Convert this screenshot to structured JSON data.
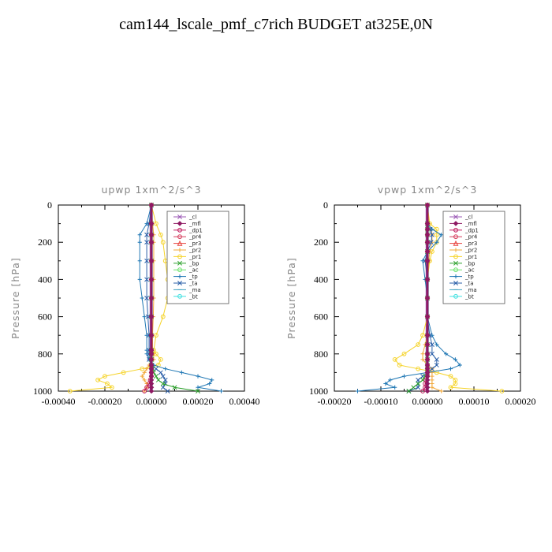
{
  "title": "cam144_lscale_pmf_c7rich  BUDGET at325E,0N",
  "legend_entries": [
    {
      "label": "_cl",
      "color": "#9b59b6",
      "marker": "x"
    },
    {
      "label": "_mfl",
      "color": "#8e1a63",
      "marker": "diamond"
    },
    {
      "label": "_dp1",
      "color": "#c0185a",
      "marker": "circle"
    },
    {
      "label": "_pr4",
      "color": "#d63a5a",
      "marker": "circle"
    },
    {
      "label": "_pr3",
      "color": "#e8413c",
      "marker": "triangle"
    },
    {
      "label": "_pr2",
      "color": "#f2a93b",
      "marker": "plus"
    },
    {
      "label": "_pr1",
      "color": "#f5d328",
      "marker": "circle"
    },
    {
      "label": "_bp",
      "color": "#2ca02c",
      "marker": "x"
    },
    {
      "label": "_ac",
      "color": "#6be36b",
      "marker": "circle"
    },
    {
      "label": "_tp",
      "color": "#1f77b4",
      "marker": "plus"
    },
    {
      "label": "_ta",
      "color": "#2b5fa8",
      "marker": "x"
    },
    {
      "label": "_ma",
      "color": "#40a0c0",
      "marker": "dash"
    },
    {
      "label": "_bt",
      "color": "#40e0e0",
      "marker": "circle"
    }
  ],
  "chart_data": [
    {
      "type": "line",
      "title": "upwp   1xm^2/s^3",
      "ylabel": "Pressure  [hPa]",
      "xlim": [
        -0.0004,
        0.0004
      ],
      "ylim": [
        1000,
        0
      ],
      "xticks": [
        "-0.00040",
        "-0.00020",
        "0.00000",
        "0.00020",
        "0.00040"
      ],
      "yticks": [
        "0",
        "200",
        "400",
        "600",
        "800",
        "1000"
      ],
      "legend": "top-right",
      "y": [
        0,
        100,
        160,
        200,
        300,
        400,
        500,
        600,
        700,
        780,
        800,
        830,
        860,
        880,
        900,
        920,
        940,
        960,
        980,
        1000
      ],
      "series": [
        {
          "name": "_pr1",
          "values": [
            0,
            2e-05,
            4e-05,
            5e-05,
            6e-05,
            7e-05,
            7e-05,
            5e-05,
            2e-05,
            1e-05,
            2e-05,
            4e-05,
            3e-05,
            -4e-05,
            -0.00012,
            -0.0002,
            -0.00023,
            -0.00019,
            -0.00017,
            -0.00035
          ]
        },
        {
          "name": "_pr2",
          "values": [
            0,
            5e-06,
            1e-05,
            1e-05,
            1e-05,
            1e-05,
            1e-05,
            8e-06,
            5e-06,
            5e-06,
            1e-05,
            1e-05,
            -1e-05,
            -2e-05,
            -3e-05,
            -4e-05,
            -3e-05,
            -2e-05,
            -2e-05,
            -3e-05
          ]
        },
        {
          "name": "_tp",
          "values": [
            0,
            -2e-05,
            -5e-05,
            -5e-05,
            -5e-05,
            -5e-05,
            -4e-05,
            -3e-05,
            -2e-05,
            -2e-05,
            -2e-05,
            -1e-05,
            1e-05,
            6e-05,
            0.00013,
            0.0002,
            0.00026,
            0.00025,
            0.0002,
            0.0003
          ]
        },
        {
          "name": "_ta",
          "values": [
            0,
            -1e-05,
            -2e-05,
            -2e-05,
            -2e-05,
            -2e-05,
            -2e-05,
            -1.5e-05,
            -1e-05,
            -1e-05,
            -1e-05,
            -1e-05,
            0,
            2e-05,
            4e-05,
            5e-05,
            6e-05,
            6e-05,
            5e-05,
            7e-05
          ]
        },
        {
          "name": "_bp",
          "values": [
            0,
            0,
            0,
            0,
            0,
            0,
            0,
            0,
            0,
            0,
            0,
            0,
            0,
            5e-06,
            1e-05,
            2e-05,
            3e-05,
            5e-05,
            0.0001,
            0.0002
          ]
        },
        {
          "name": "_dp1",
          "values": [
            0,
            0,
            0,
            0,
            0,
            0,
            0,
            0,
            0,
            0,
            0,
            0,
            0,
            0,
            0,
            0,
            -5e-06,
            -1e-05,
            -2e-05,
            -3e-05
          ]
        },
        {
          "name": "_mfl",
          "values": [
            0,
            0,
            0,
            0,
            0,
            0,
            0,
            0,
            0,
            0,
            0,
            0,
            0,
            0,
            0,
            0,
            0,
            0,
            0,
            0
          ]
        }
      ]
    },
    {
      "type": "line",
      "title": "vpwp   1xm^2/s^3",
      "ylabel": "Pressure  [hPa]",
      "xlim": [
        -0.0002,
        0.0002
      ],
      "ylim": [
        1000,
        0
      ],
      "xticks": [
        "-0.00020",
        "-0.00010",
        "0.00000",
        "0.00010",
        "0.00020"
      ],
      "yticks": [
        "0",
        "200",
        "400",
        "600",
        "800",
        "1000"
      ],
      "legend": "top-right",
      "y": [
        0,
        100,
        130,
        160,
        200,
        250,
        300,
        400,
        500,
        600,
        700,
        750,
        800,
        830,
        860,
        880,
        900,
        920,
        940,
        960,
        980,
        1000
      ],
      "series": [
        {
          "name": "_pr1",
          "values": [
            0,
            5e-06,
            2e-05,
            2e-05,
            2e-05,
            1e-05,
            5e-06,
            0,
            0,
            0,
            -1e-05,
            -2e-05,
            -5e-05,
            -7e-05,
            -6e-05,
            -2e-05,
            2e-05,
            5e-05,
            6e-05,
            6e-05,
            5e-05,
            0.00016
          ]
        },
        {
          "name": "_pr2",
          "values": [
            0,
            3e-06,
            8e-06,
            1e-05,
            1e-05,
            5e-06,
            3e-06,
            0,
            0,
            0,
            0,
            -5e-06,
            -1e-05,
            -1e-05,
            0,
            1e-05,
            1e-05,
            1e-05,
            1e-05,
            1e-05,
            1e-05,
            3e-05
          ]
        },
        {
          "name": "_tp",
          "values": [
            0,
            0,
            1e-05,
            3e-05,
            2e-05,
            0,
            -1e-05,
            -5e-06,
            0,
            0,
            1e-05,
            2e-05,
            4e-05,
            6e-05,
            7e-05,
            5e-05,
            0,
            -5e-05,
            -8e-05,
            -9e-05,
            -7e-05,
            -0.00015
          ]
        },
        {
          "name": "_ta",
          "values": [
            0,
            0,
            5e-06,
            1e-05,
            8e-06,
            0,
            -5e-06,
            0,
            0,
            0,
            5e-06,
            1e-05,
            1e-05,
            2e-05,
            2e-05,
            1e-05,
            0,
            -1e-05,
            -2e-05,
            -2e-05,
            -2e-05,
            -4e-05
          ]
        },
        {
          "name": "_bp",
          "values": [
            0,
            0,
            0,
            0,
            0,
            0,
            0,
            0,
            0,
            0,
            0,
            0,
            0,
            0,
            0,
            0,
            0,
            -5e-06,
            -1e-05,
            -2e-05,
            -3e-05,
            -4e-05
          ]
        },
        {
          "name": "_dp1",
          "values": [
            0,
            0,
            0,
            0,
            0,
            0,
            0,
            0,
            0,
            0,
            0,
            0,
            0,
            0,
            0,
            0,
            0,
            0,
            -3e-06,
            -5e-06,
            -5e-06,
            -1e-05
          ]
        },
        {
          "name": "_mfl",
          "values": [
            0,
            0,
            0,
            0,
            0,
            0,
            0,
            0,
            0,
            0,
            0,
            0,
            0,
            0,
            0,
            0,
            0,
            0,
            0,
            0,
            0,
            0
          ]
        }
      ]
    }
  ]
}
